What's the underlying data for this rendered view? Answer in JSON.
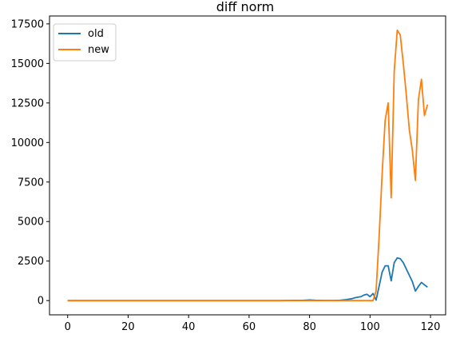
{
  "chart_data": {
    "type": "line",
    "title": "diff norm",
    "xlabel": "",
    "ylabel": "",
    "xlim": [
      -6,
      125
    ],
    "ylim": [
      -900,
      18000
    ],
    "xticks": [
      0,
      20,
      40,
      60,
      80,
      100,
      120
    ],
    "yticks": [
      0,
      2500,
      5000,
      7500,
      10000,
      12500,
      15000,
      17500
    ],
    "grid": false,
    "legend": "top-left",
    "series": [
      {
        "name": "old",
        "color": "#1f77b4",
        "x": [
          0,
          10,
          20,
          30,
          40,
          50,
          60,
          70,
          78,
          80,
          82,
          85,
          88,
          90,
          92,
          94,
          95,
          96,
          97,
          98,
          99,
          100,
          101,
          102,
          103,
          104,
          105,
          106,
          107,
          108,
          109,
          110,
          111,
          112,
          113,
          114,
          115,
          116,
          117,
          118,
          119
        ],
        "y": [
          0,
          0,
          0,
          0,
          0,
          0,
          0,
          0,
          20,
          40,
          20,
          10,
          10,
          20,
          60,
          120,
          180,
          220,
          250,
          350,
          400,
          250,
          450,
          30,
          900,
          1800,
          2200,
          2200,
          1250,
          2400,
          2700,
          2650,
          2400,
          2000,
          1600,
          1200,
          600,
          900,
          1150,
          1000,
          850
        ]
      },
      {
        "name": "new",
        "color": "#ff7f0e",
        "x": [
          0,
          10,
          20,
          30,
          40,
          50,
          60,
          70,
          80,
          90,
          95,
          100,
          101,
          102,
          103,
          104,
          105,
          106,
          107,
          108,
          109,
          110,
          111,
          112,
          113,
          114,
          115,
          116,
          117,
          118,
          119
        ],
        "y": [
          0,
          0,
          0,
          0,
          0,
          0,
          0,
          0,
          0,
          0,
          0,
          0,
          0,
          600,
          4000,
          8000,
          11400,
          12500,
          6500,
          14500,
          17100,
          16800,
          15000,
          13000,
          10800,
          9500,
          7600,
          12700,
          14000,
          11700,
          12400
        ]
      }
    ]
  }
}
